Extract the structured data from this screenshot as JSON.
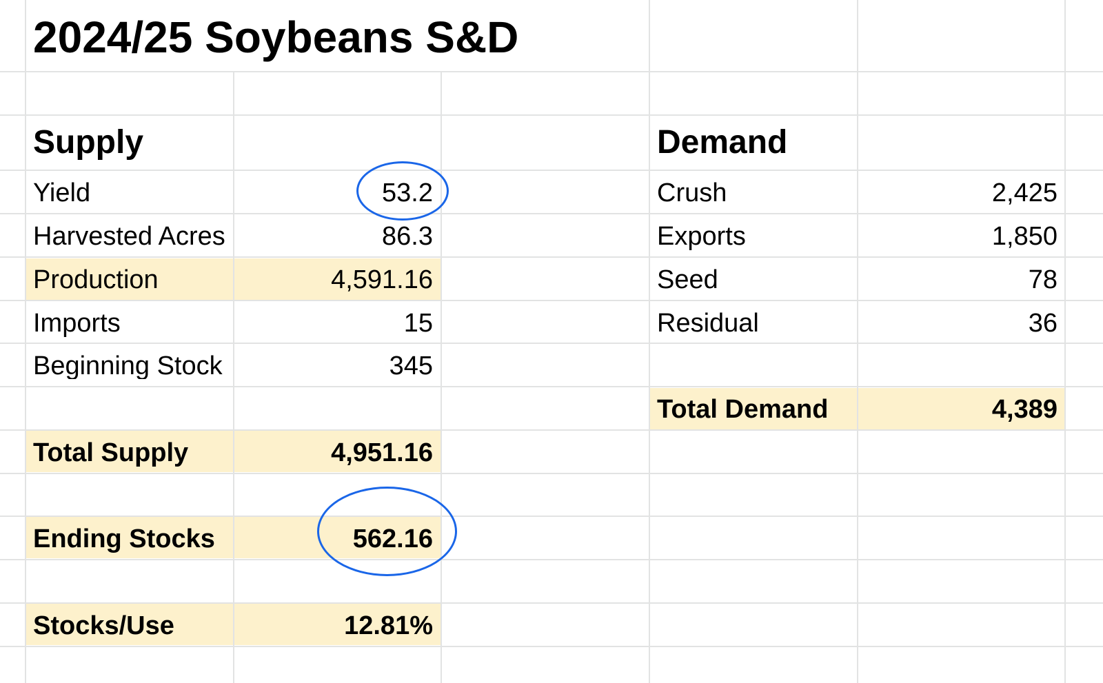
{
  "title": "2024/25 Soybeans S&D",
  "supply": {
    "header": "Supply",
    "rows": [
      {
        "label": "Yield",
        "value": "53.2"
      },
      {
        "label": "Harvested Acres",
        "value": "86.3"
      },
      {
        "label": "Production",
        "value": "4,591.16"
      },
      {
        "label": "Imports",
        "value": "15"
      },
      {
        "label": "Beginning Stock",
        "value": "345"
      }
    ],
    "total_label": "Total Supply",
    "total_value": "4,951.16",
    "ending_label": "Ending Stocks",
    "ending_value": "562.16",
    "stocks_use_label": "Stocks/Use",
    "stocks_use_value": "12.81%"
  },
  "demand": {
    "header": "Demand",
    "rows": [
      {
        "label": "Crush",
        "value": "2,425"
      },
      {
        "label": "Exports",
        "value": "1,850"
      },
      {
        "label": "Seed",
        "value": "78"
      },
      {
        "label": "Residual",
        "value": "36"
      }
    ],
    "total_label": "Total Demand",
    "total_value": "4,389"
  },
  "colors": {
    "highlight": "#fdf1cc",
    "circle": "#1a66e8",
    "grid": "#e2e3e3"
  }
}
